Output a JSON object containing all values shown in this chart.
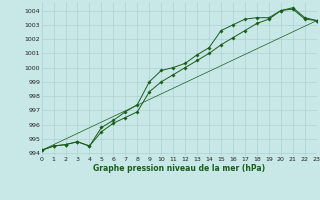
{
  "xlabel": "Graphe pression niveau de la mer (hPa)",
  "xlim": [
    0,
    23
  ],
  "ylim": [
    993.8,
    1004.6
  ],
  "yticks": [
    994,
    995,
    996,
    997,
    998,
    999,
    1000,
    1001,
    1002,
    1003,
    1004
  ],
  "xticks": [
    0,
    1,
    2,
    3,
    4,
    5,
    6,
    7,
    8,
    9,
    10,
    11,
    12,
    13,
    14,
    15,
    16,
    17,
    18,
    19,
    20,
    21,
    22,
    23
  ],
  "bg_color": "#c8e8e8",
  "grid_color": "#a8cccc",
  "line_color": "#1a5c1a",
  "line1_y": [
    994.2,
    994.5,
    994.6,
    994.8,
    994.5,
    995.8,
    996.3,
    996.9,
    997.4,
    999.0,
    999.8,
    1000.0,
    1000.3,
    1000.9,
    1001.4,
    1002.6,
    1003.0,
    1003.4,
    1003.5,
    1003.5,
    1004.0,
    1004.1,
    1003.4,
    1003.3
  ],
  "line2_y": [
    994.2,
    994.5,
    994.6,
    994.8,
    994.5,
    995.5,
    996.1,
    996.5,
    996.9,
    998.3,
    999.0,
    999.5,
    1000.0,
    1000.5,
    1001.0,
    1001.6,
    1002.1,
    1002.6,
    1003.1,
    1003.4,
    1004.0,
    1004.2,
    1003.5,
    1003.3
  ],
  "ref_line_x": [
    0,
    23
  ],
  "ref_line_y": [
    994.2,
    1003.3
  ],
  "marker": "D",
  "markersize": 1.8,
  "linewidth": 0.7,
  "ref_linewidth": 0.5,
  "xlabel_fontsize": 5.5,
  "tick_fontsize": 4.5
}
